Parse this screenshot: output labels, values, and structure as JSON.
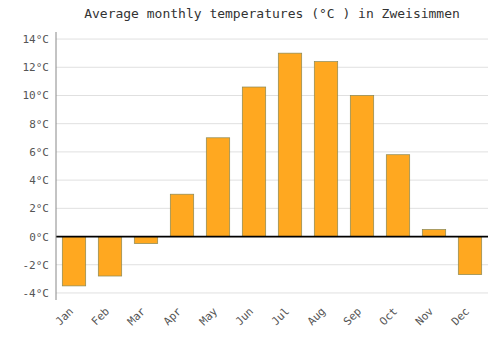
{
  "chart_data": {
    "type": "bar",
    "title": "Average monthly temperatures (°C ) in Zweisimmen",
    "categories": [
      "Jan",
      "Feb",
      "Mar",
      "Apr",
      "May",
      "Jun",
      "Jul",
      "Aug",
      "Sep",
      "Oct",
      "Nov",
      "Dec"
    ],
    "values": [
      -3.5,
      -2.8,
      -0.5,
      3.0,
      7.0,
      10.6,
      13.0,
      12.4,
      10.0,
      5.8,
      0.5,
      -2.7
    ],
    "color": "#FFA820",
    "ylim": [
      -4.5,
      14.5
    ],
    "yticks": [
      {
        "value": -4,
        "label": "-4°C"
      },
      {
        "value": -2,
        "label": "-2°C"
      },
      {
        "value": 0,
        "label": "0°C"
      },
      {
        "value": 2,
        "label": "2°C"
      },
      {
        "value": 4,
        "label": "4°C"
      },
      {
        "value": 6,
        "label": "6°C"
      },
      {
        "value": 8,
        "label": "8°C"
      },
      {
        "value": 10,
        "label": "10°C"
      },
      {
        "value": 12,
        "label": "12°C"
      },
      {
        "value": 14,
        "label": "14°C"
      }
    ],
    "grid": true
  }
}
